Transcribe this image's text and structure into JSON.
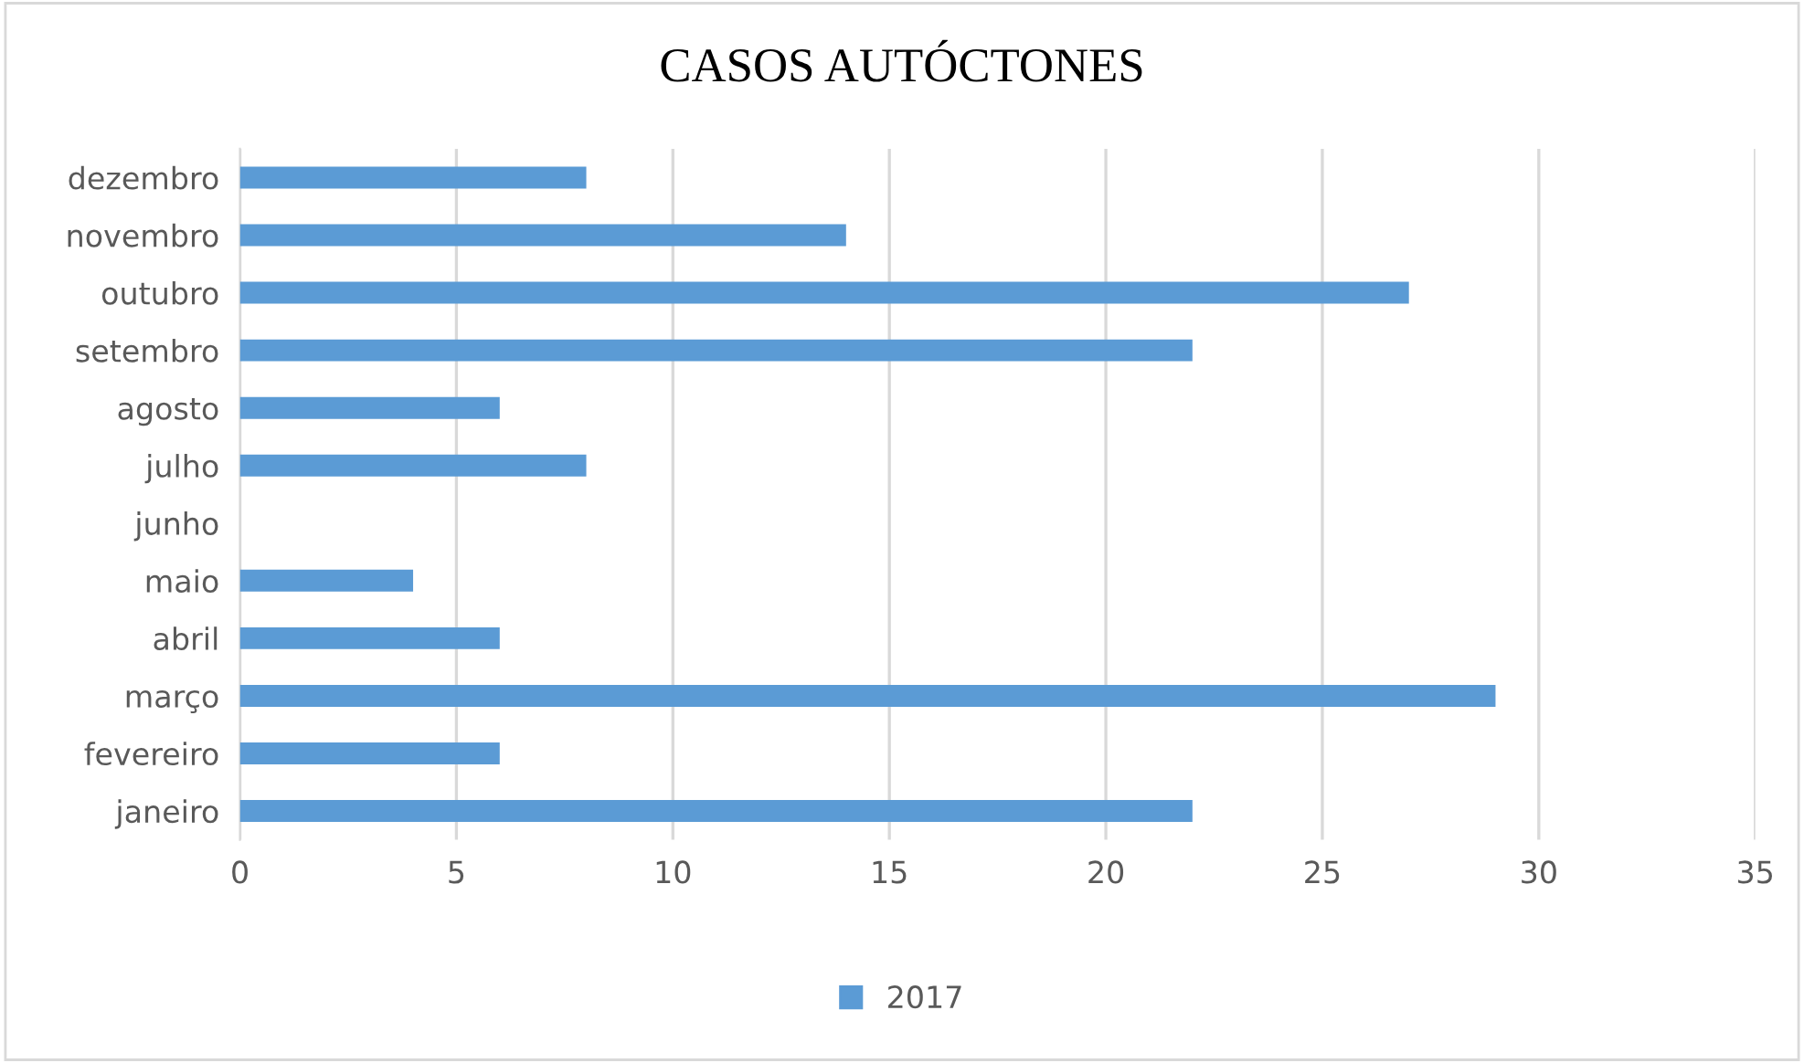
{
  "chart_data": {
    "type": "bar",
    "orientation": "horizontal",
    "title": "CASOS AUTÓCTONES",
    "categories": [
      "dezembro",
      "novembro",
      "outubro",
      "setembro",
      "agosto",
      "julho",
      "junho",
      "maio",
      "abril",
      "março",
      "fevereiro",
      "janeiro"
    ],
    "series": [
      {
        "name": "2017",
        "color": "#5b9bd5",
        "values": [
          8,
          14,
          27,
          22,
          6,
          8,
          0,
          4,
          6,
          29,
          6,
          22
        ]
      }
    ],
    "xlim": [
      0,
      35
    ],
    "xticks": [
      0,
      5,
      10,
      15,
      20,
      25,
      30,
      35
    ],
    "grid": "x",
    "legend": "bottom"
  }
}
